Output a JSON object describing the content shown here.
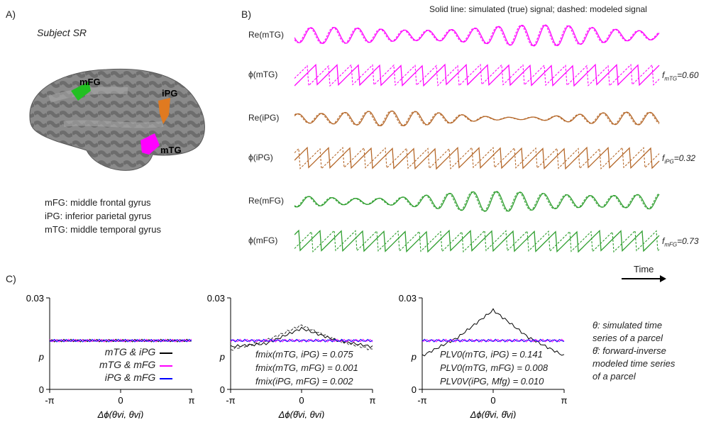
{
  "panelA": {
    "label": "A)",
    "subject": "Subject SR",
    "regions": [
      {
        "abbr": "mFG",
        "color": "#22c022"
      },
      {
        "abbr": "iPG",
        "color": "#e07a20"
      },
      {
        "abbr": "mTG",
        "color": "#ff00ff"
      }
    ],
    "legend": [
      "mFG: middle frontal gyrus",
      "iPG: inferior parietal gyrus",
      "mTG: middle temporal gyrus"
    ]
  },
  "panelB": {
    "label": "B)",
    "caption": "Solid line: simulated (true) signal;  dashed: modeled signal",
    "time_label": "Time",
    "traces": [
      {
        "label": "Re(mTG)",
        "color": "#ff00ff",
        "kind": "re"
      },
      {
        "label": "ϕ(mTG)",
        "color": "#ff00ff",
        "kind": "phase",
        "f_sub": "mTG",
        "f_value": "0.60"
      },
      {
        "label": "Re(iPG)",
        "color": "#b5682a",
        "kind": "re"
      },
      {
        "label": "ϕ(iPG)",
        "color": "#b5682a",
        "kind": "phase",
        "f_sub": "iPG",
        "f_value": "0.32"
      },
      {
        "label": "Re(mFG)",
        "color": "#2e9e2e",
        "kind": "re"
      },
      {
        "label": "ϕ(mFG)",
        "color": "#2e9e2e",
        "kind": "phase",
        "f_sub": "mFG",
        "f_value": "0.73"
      }
    ]
  },
  "panelC": {
    "label": "C)",
    "y_ticks": [
      "0.03",
      "p",
      "0"
    ],
    "x_ticks": [
      "-π",
      "0",
      "π"
    ],
    "ylim": [
      0,
      0.03
    ],
    "xlim": [
      -3.1416,
      3.1416
    ],
    "series_colors": {
      "mTG_iPG": "#000000",
      "mTG_mFG": "#ff00ff",
      "iPG_mFG": "#0000ff"
    },
    "plots": [
      {
        "xlabel": "Δϕ(θvi, θvj)",
        "legend": [
          "mTG & iPG",
          "mTG & mFG",
          "iPG   & mFG"
        ]
      },
      {
        "xlabel": "Δϕ(θ̂vi, θvi)",
        "stats": [
          "fmix(mTG,   iPG) = 0.075",
          "fmix(mTG, mFG) = 0.001",
          "fmix(iPG, mFG)   = 0.002"
        ]
      },
      {
        "xlabel": "Δϕ(θ̂vi, θ̂vj)",
        "stats": [
          "PLV0(mTG, iPG)   = 0.141",
          "PLV0(mTG, mFG) = 0.008",
          "PLV0V(iPG, Mfg)     = 0.010"
        ]
      }
    ],
    "note": [
      "θ: simulated time",
      "series of a parcel",
      "θ̂: forward-inverse",
      "modeled time series",
      "of a parcel"
    ]
  },
  "chart_data": [
    {
      "type": "line",
      "xlabel": "Δϕ(θvi, θvj)",
      "xlim": [
        -3.1416,
        3.1416
      ],
      "ylim": [
        0,
        0.03
      ],
      "x": [
        -3.14,
        -1.57,
        0,
        1.57,
        3.14
      ],
      "series": [
        {
          "name": "mTG & iPG",
          "values": [
            0.016,
            0.016,
            0.016,
            0.016,
            0.016
          ]
        },
        {
          "name": "mTG & mFG",
          "values": [
            0.016,
            0.016,
            0.016,
            0.016,
            0.016
          ]
        },
        {
          "name": "iPG   & mFG",
          "values": [
            0.016,
            0.016,
            0.016,
            0.016,
            0.016
          ]
        }
      ]
    },
    {
      "type": "line",
      "xlabel": "Δϕ(θ̂vi, θvi)",
      "xlim": [
        -3.1416,
        3.1416
      ],
      "ylim": [
        0,
        0.03
      ],
      "x": [
        -3.14,
        -1.57,
        0,
        1.57,
        3.14
      ],
      "series": [
        {
          "values": [
            0.014,
            0.015,
            0.02,
            0.016,
            0.014
          ]
        },
        {
          "values": [
            0.013,
            0.016,
            0.021,
            0.016,
            0.013
          ]
        },
        {
          "values": [
            0.016,
            0.016,
            0.016,
            0.016,
            0.016
          ]
        },
        {
          "values": [
            0.016,
            0.016,
            0.016,
            0.016,
            0.016
          ]
        }
      ]
    },
    {
      "type": "line",
      "xlabel": "Δϕ(θ̂vi, θ̂vj)",
      "xlim": [
        -3.1416,
        3.1416
      ],
      "ylim": [
        0,
        0.03
      ],
      "x": [
        -3.14,
        -1.57,
        0,
        1.57,
        3.14
      ],
      "series": [
        {
          "values": [
            0.011,
            0.017,
            0.026,
            0.017,
            0.011
          ]
        },
        {
          "values": [
            0.016,
            0.016,
            0.016,
            0.016,
            0.016
          ]
        },
        {
          "values": [
            0.016,
            0.016,
            0.016,
            0.016,
            0.016
          ]
        }
      ]
    }
  ]
}
